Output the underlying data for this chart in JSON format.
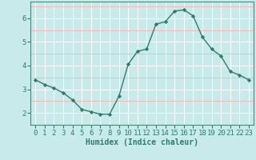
{
  "x": [
    0,
    1,
    2,
    3,
    4,
    5,
    6,
    7,
    8,
    9,
    10,
    11,
    12,
    13,
    14,
    15,
    16,
    17,
    18,
    19,
    20,
    21,
    22,
    23
  ],
  "y": [
    3.4,
    3.2,
    3.05,
    2.85,
    2.55,
    2.15,
    2.05,
    1.95,
    1.95,
    2.7,
    4.05,
    4.6,
    4.7,
    5.75,
    5.85,
    6.3,
    6.35,
    6.1,
    5.2,
    4.7,
    4.4,
    3.75,
    3.6,
    3.4
  ],
  "line_color": "#2d7d6e",
  "marker": "D",
  "marker_size": 2.2,
  "bg_color": "#c8eaea",
  "grid_color_major": "#ffffff",
  "grid_color_minor": "#f0b8b8",
  "xlabel": "Humidex (Indice chaleur)",
  "xlabel_fontsize": 7,
  "ylim": [
    1.5,
    6.7
  ],
  "xlim": [
    -0.5,
    23.5
  ],
  "yticks": [
    2,
    3,
    4,
    5,
    6
  ],
  "xticks": [
    0,
    1,
    2,
    3,
    4,
    5,
    6,
    7,
    8,
    9,
    10,
    11,
    12,
    13,
    14,
    15,
    16,
    17,
    18,
    19,
    20,
    21,
    22,
    23
  ],
  "tick_fontsize": 6.5,
  "line_width": 1.0,
  "spine_color": "#4a8a7a"
}
